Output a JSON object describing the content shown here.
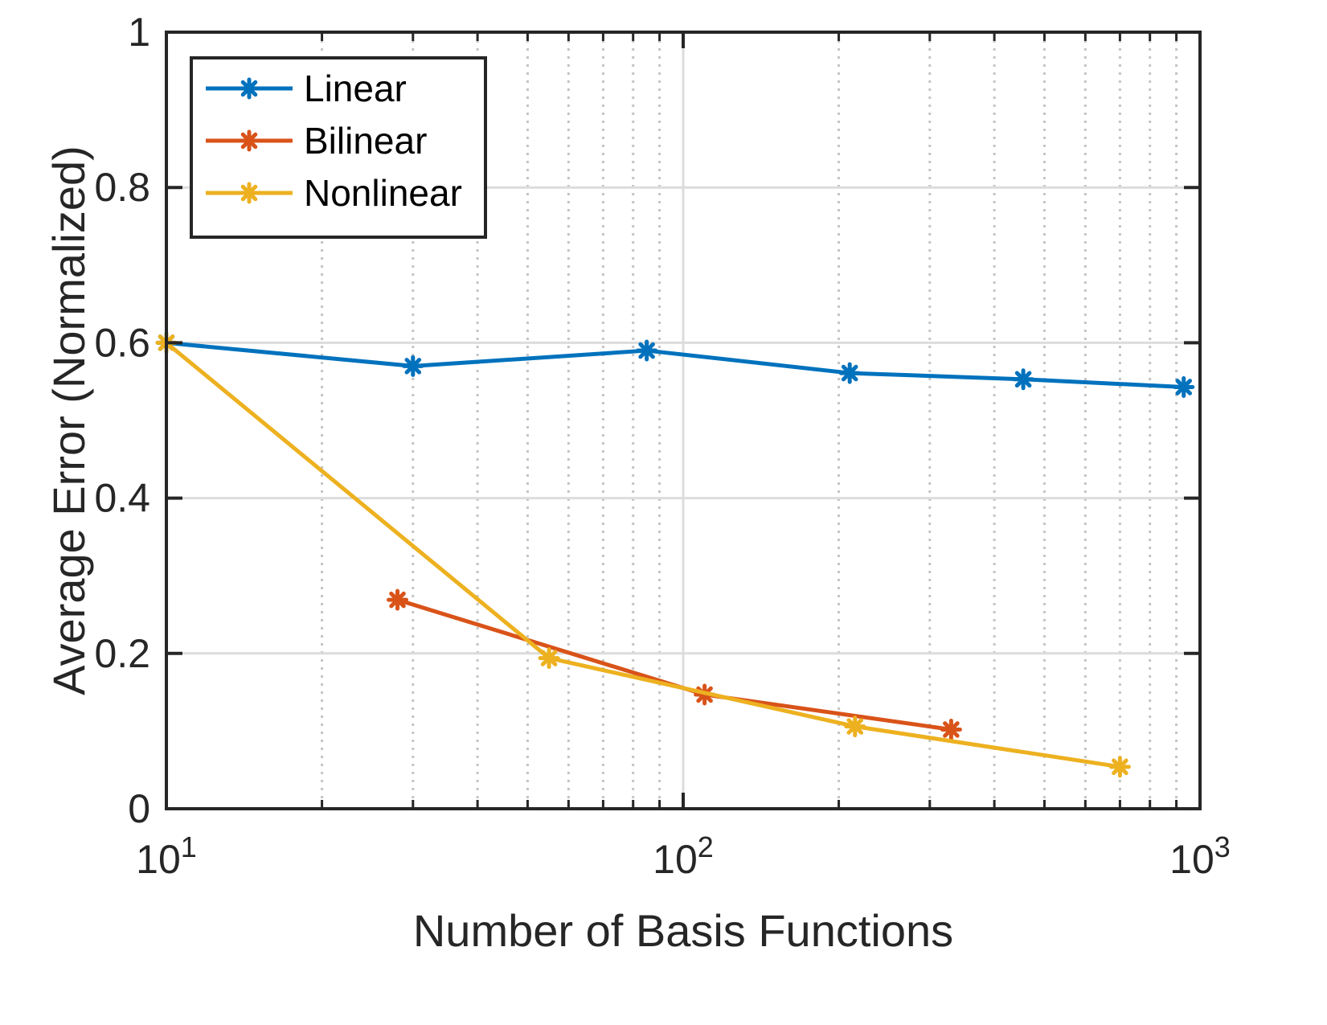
{
  "chart_data": {
    "type": "line",
    "xlabel": "Number of Basis Functions",
    "ylabel": "Average Error (Normalized)",
    "xscale": "log",
    "xlim": [
      10,
      1000
    ],
    "ylim": [
      0,
      1
    ],
    "grid": "on",
    "legend_position": "top-left",
    "x_ticks": [
      {
        "base": "10",
        "exp": "1"
      },
      {
        "base": "10",
        "exp": "2"
      },
      {
        "base": "10",
        "exp": "3"
      }
    ],
    "y_ticks": [
      "0",
      "0.2",
      "0.4",
      "0.6",
      "0.8",
      "1"
    ],
    "series": [
      {
        "name": "Linear",
        "color": "#0072bd",
        "x": [
          10,
          30,
          85,
          210,
          455,
          930
        ],
        "y": [
          0.6,
          0.57,
          0.59,
          0.561,
          0.553,
          0.543
        ]
      },
      {
        "name": "Bilinear",
        "color": "#d95319",
        "x": [
          28,
          110,
          330
        ],
        "y": [
          0.269,
          0.147,
          0.102
        ]
      },
      {
        "name": "Nonlinear",
        "color": "#edb120",
        "x": [
          10,
          55,
          215,
          700
        ],
        "y": [
          0.6,
          0.194,
          0.106,
          0.054
        ]
      }
    ]
  }
}
